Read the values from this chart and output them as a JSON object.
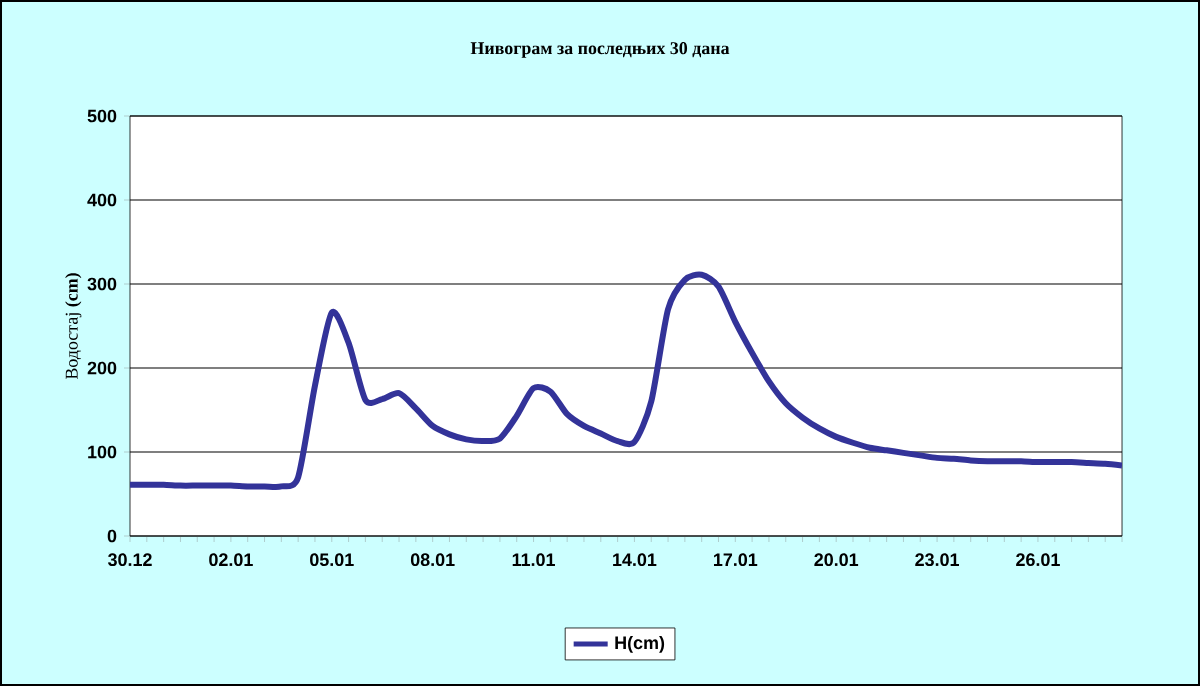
{
  "chart_data": {
    "type": "line",
    "title": "Нивограм за последњих 30 дана",
    "ylabel": "Водостај **(cm)**",
    "categories": [
      "30.12",
      null,
      null,
      null,
      null,
      null,
      "02.01",
      null,
      null,
      null,
      null,
      null,
      "05.01",
      null,
      null,
      null,
      null,
      null,
      "08.01",
      null,
      null,
      null,
      null,
      null,
      "11.01",
      null,
      null,
      null,
      null,
      null,
      "14.01",
      null,
      null,
      null,
      null,
      null,
      "17.01",
      null,
      null,
      null,
      null,
      null,
      "20.01",
      null,
      null,
      null,
      null,
      null,
      "23.01",
      null,
      null,
      null,
      null,
      null,
      "26.01",
      null,
      null,
      null,
      null,
      null
    ],
    "series": [
      {
        "name": "H(cm)",
        "color": "#333399",
        "values": [
          61,
          61,
          61,
          60,
          60,
          60,
          60,
          59,
          59,
          59,
          70,
          179,
          266,
          230,
          162,
          163,
          170,
          152,
          131,
          121,
          115,
          113,
          116,
          143,
          176,
          172,
          145,
          131,
          122,
          113,
          112,
          160,
          270,
          305,
          311,
          297,
          255,
          218,
          184,
          158,
          141,
          128,
          118,
          111,
          105,
          102,
          99,
          96,
          93,
          92,
          90,
          89,
          89,
          89,
          88,
          88,
          88,
          87,
          86,
          84
        ]
      }
    ],
    "ylim": [
      0,
      500
    ],
    "yticks": [
      0,
      100,
      200,
      300,
      400,
      500
    ],
    "grid": "y",
    "legend": "bottom",
    "marker": "none",
    "line_style": "solid"
  }
}
